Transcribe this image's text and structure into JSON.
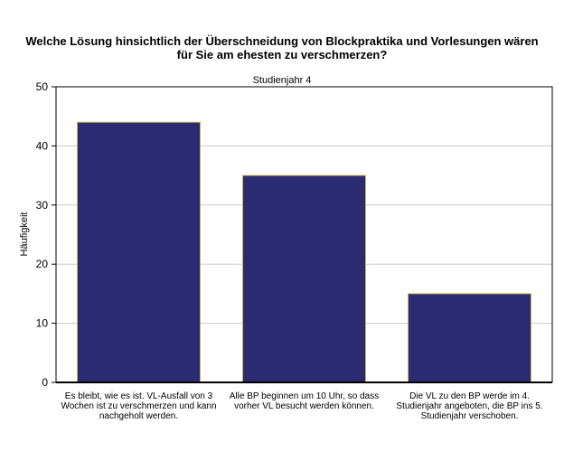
{
  "chart_data": {
    "type": "bar",
    "title_lines": [
      "Welche Lösung hinsichtlich der Überschneidung von Blockpraktika und Vorlesungen wären",
      "für Sie am ehesten zu verschmerzen?"
    ],
    "subtitle": "Studienjahr 4",
    "xlabel": "",
    "ylabel": "Häufigkeit",
    "ylim": [
      0,
      50
    ],
    "yticks": [
      0,
      10,
      20,
      30,
      40,
      50
    ],
    "grid": true,
    "categories": [
      "Es bleibt, wie es ist. VL-Ausfall von 3 Wochen ist zu verschmerzen und kann nachgeholt werden.",
      "Alle BP beginnen um 10 Uhr, so dass vorher VL besucht werden können.",
      "Die VL zu den BP werde im 4. Studienjahr angeboten, die BP ins 5. Studienjahr verschoben."
    ],
    "values": [
      44,
      35,
      15
    ],
    "bar_color": "#2b2b72",
    "bar_edge_color": "#c8b450"
  }
}
